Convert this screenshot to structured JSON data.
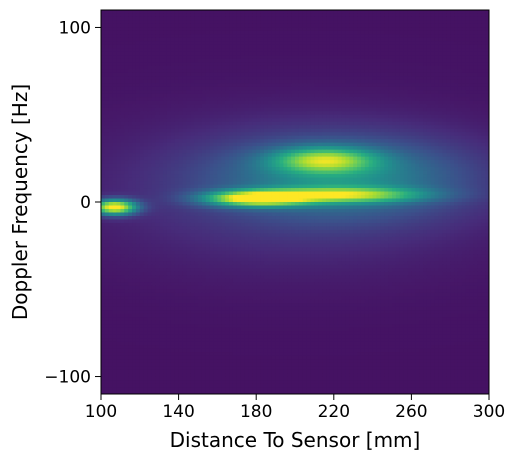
{
  "chart_data": {
    "type": "heatmap",
    "title": "",
    "xlabel": "Distance To Sensor [mm]",
    "ylabel": "Doppler Frequency [Hz]",
    "xlim": [
      100,
      300
    ],
    "ylim": [
      -110,
      110
    ],
    "x_ticks": [
      100,
      140,
      180,
      220,
      260,
      300
    ],
    "y_ticks": [
      100,
      0,
      -100
    ],
    "y_tick_labels": [
      "100",
      "0",
      "−100"
    ],
    "colormap": "viridis",
    "colormap_stops": [
      "#440154",
      "#472c7a",
      "#3b518b",
      "#2c718e",
      "#21908d",
      "#27ad81",
      "#5cc863",
      "#aadc32",
      "#fde725"
    ],
    "background_value": 0.05,
    "features": [
      {
        "label": "near-field peak",
        "x": 107,
        "y": -3,
        "sx": 8,
        "sy": 3,
        "amp": 0.95
      },
      {
        "label": "main ridge",
        "x": 180,
        "y": 2,
        "sx": 18,
        "sy": 3,
        "amp": 0.85
      },
      {
        "label": "main ridge extension",
        "x": 225,
        "y": 4,
        "sx": 28,
        "sy": 3,
        "amp": 0.55
      },
      {
        "label": "upper band",
        "x": 215,
        "y": 24,
        "sx": 18,
        "sy": 5,
        "amp": 0.55
      },
      {
        "label": "broad return",
        "x": 225,
        "y": 14,
        "sx": 45,
        "sy": 16,
        "amp": 0.35
      },
      {
        "label": "faint spread",
        "x": 200,
        "y": 5,
        "sx": 70,
        "sy": 30,
        "amp": 0.12
      }
    ]
  }
}
